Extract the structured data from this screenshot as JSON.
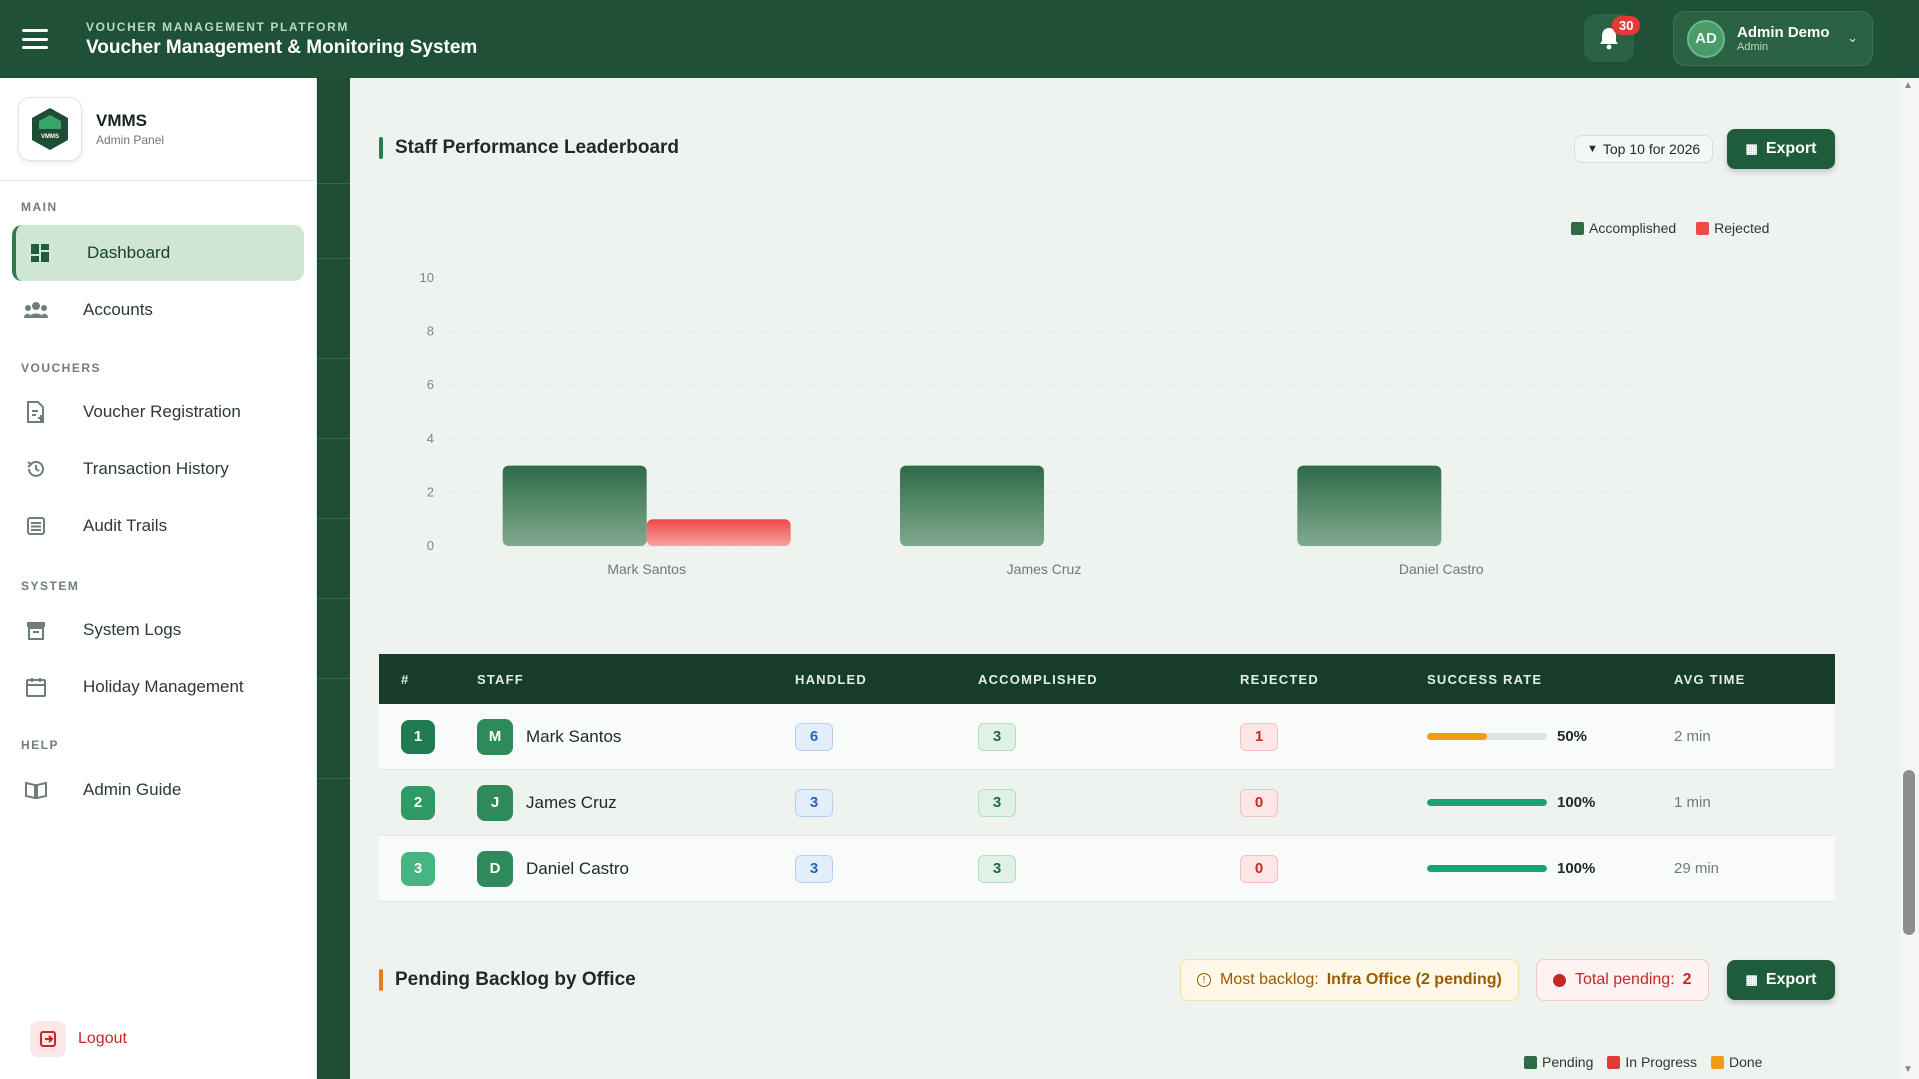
{
  "header": {
    "platform_label": "VOUCHER MANAGEMENT PLATFORM",
    "title": "Voucher Management & Monitoring System",
    "notification_count": "30",
    "user": {
      "initials": "AD",
      "name": "Admin Demo",
      "role": "Admin"
    }
  },
  "sidebar": {
    "logo_title": "VMMS",
    "logo_sub": "Admin Panel",
    "logo_text": "VMMS",
    "sections": {
      "main": "MAIN",
      "vouchers": "VOUCHERS",
      "system": "SYSTEM",
      "help": "HELP"
    },
    "items": {
      "dashboard": "Dashboard",
      "accounts": "Accounts",
      "voucher_registration": "Voucher Registration",
      "transaction_history": "Transaction History",
      "audit_trails": "Audit Trails",
      "system_logs": "System Logs",
      "holiday_management": "Holiday Management",
      "admin_guide": "Admin Guide"
    },
    "logout": "Logout"
  },
  "leaderboard": {
    "title": "Staff Performance Leaderboard",
    "badge": "Top 10 for 2026",
    "export_label": "Export",
    "legend": {
      "accomplished": "Accomplished",
      "rejected": "Rejected"
    },
    "colors": {
      "accomplished": "#2f6b48",
      "rejected": "#f04848"
    }
  },
  "chart_data": {
    "type": "bar",
    "categories": [
      "Mark Santos",
      "James Cruz",
      "Daniel Castro"
    ],
    "series": [
      {
        "name": "Accomplished",
        "values": [
          3,
          3,
          3
        ]
      },
      {
        "name": "Rejected",
        "values": [
          1,
          0,
          0
        ]
      }
    ],
    "ylim": [
      0,
      10
    ],
    "yticks": [
      "0",
      "2",
      "4",
      "6",
      "8",
      "10"
    ],
    "grid": true,
    "legend_position": "top-right"
  },
  "table": {
    "headers": [
      "#",
      "STAFF",
      "HANDLED",
      "ACCOMPLISHED",
      "REJECTED",
      "SUCCESS RATE",
      "AVG TIME"
    ],
    "rows": [
      {
        "rank": "1",
        "initial": "M",
        "name": "Mark Santos",
        "handled": "6",
        "accomplished": "3",
        "rejected": "1",
        "rate": "50%",
        "rate_value": 0.5,
        "rate_color": "#f39c12",
        "avg": "2 min"
      },
      {
        "rank": "2",
        "initial": "J",
        "name": "James Cruz",
        "handled": "3",
        "accomplished": "3",
        "rejected": "0",
        "rate": "100%",
        "rate_value": 1.0,
        "rate_color": "#18a374",
        "avg": "1 min"
      },
      {
        "rank": "3",
        "initial": "D",
        "name": "Daniel Castro",
        "handled": "3",
        "accomplished": "3",
        "rejected": "0",
        "rate": "100%",
        "rate_value": 1.0,
        "rate_color": "#18a374",
        "avg": "29 min"
      }
    ]
  },
  "backlog": {
    "title": "Pending Backlog by Office",
    "most_label": "Most backlog:",
    "most_value": "Infra Office (2 pending)",
    "total_label": "Total pending:",
    "total_value": "2",
    "export_label": "Export",
    "legend": {
      "pending": "Pending",
      "in_progress": "In Progress",
      "done": "Done"
    },
    "colors": {
      "pending": "#2f6b48",
      "in_progress": "#e53935",
      "done": "#f39c12"
    }
  }
}
